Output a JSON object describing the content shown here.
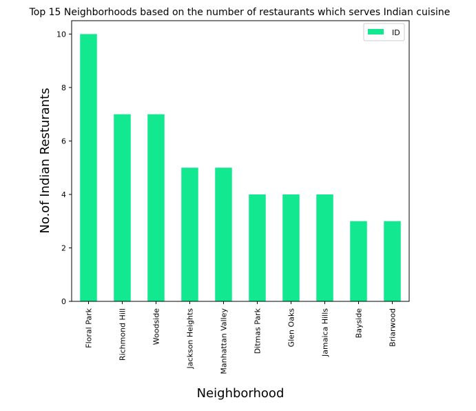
{
  "chart_data": {
    "type": "bar",
    "title": "Top 15 Neighborhoods based on the number of restaurants which serves Indian cuisine",
    "xlabel": "Neighborhood",
    "ylabel": "No.of Indian Resturants",
    "categories": [
      "Floral Park",
      "Richmond Hill",
      "Woodside",
      "Jackson Heights",
      "Manhattan Valley",
      "Ditmas Park",
      "Glen Oaks",
      "Jamaica Hills",
      "Bayside",
      "Briarwood"
    ],
    "series": [
      {
        "name": "ID",
        "values": [
          10,
          7,
          7,
          5,
          5,
          4,
          4,
          4,
          3,
          3
        ]
      }
    ],
    "ylim": [
      0,
      10.5
    ],
    "yticks": [
      0,
      2,
      4,
      6,
      8,
      10
    ],
    "grid": false,
    "legend": "top-right",
    "colors": {
      "bar": "#12e890"
    }
  }
}
